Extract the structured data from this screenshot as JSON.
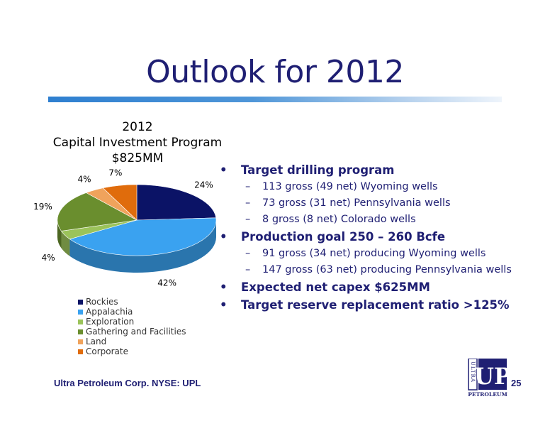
{
  "slide": {
    "title": "Outlook for 2012",
    "footer_left": "Ultra Petroleum Corp. NYSE: UPL",
    "page_number": "25"
  },
  "logo": {
    "vertical_text": "ULTRA",
    "letters": "UP",
    "word": "PETROLEUM",
    "color": "#1f1f73"
  },
  "chart_data": {
    "type": "pie",
    "title_lines": [
      "2012",
      "Capital Investment  Program",
      "$825MM"
    ],
    "legend_placement": "bottom-left",
    "slices": [
      {
        "name": "Rockies",
        "value": 24,
        "label": "24%",
        "color": "#0b1366"
      },
      {
        "name": "Appalachia",
        "value": 42,
        "label": "42%",
        "color": "#3aa2f0"
      },
      {
        "name": "Exploration",
        "value": 4,
        "label": "4%",
        "color": "#9bc35a"
      },
      {
        "name": "Gathering and Facilities",
        "value": 19,
        "label": "19%",
        "color": "#6a8e2e"
      },
      {
        "name": "Land",
        "value": 4,
        "label": "4%",
        "color": "#f0a35c"
      },
      {
        "name": "Corporate",
        "value": 7,
        "label": "7%",
        "color": "#e06c0c"
      }
    ]
  },
  "bullets": [
    {
      "text": "Target drilling program",
      "subs": [
        "113 gross (49 net) Wyoming wells",
        "73 gross (31 net) Pennsylvania wells",
        "8 gross (8 net) Colorado wells"
      ]
    },
    {
      "text": "Production goal 250 – 260 Bcfe",
      "subs": [
        "91 gross (34 net) producing Wyoming wells",
        "147 gross (63 net) producing Pennsylvania wells"
      ]
    },
    {
      "text": "Expected net capex $625MM",
      "subs": []
    },
    {
      "text": "Target reserve replacement ratio >125%",
      "subs": []
    }
  ]
}
